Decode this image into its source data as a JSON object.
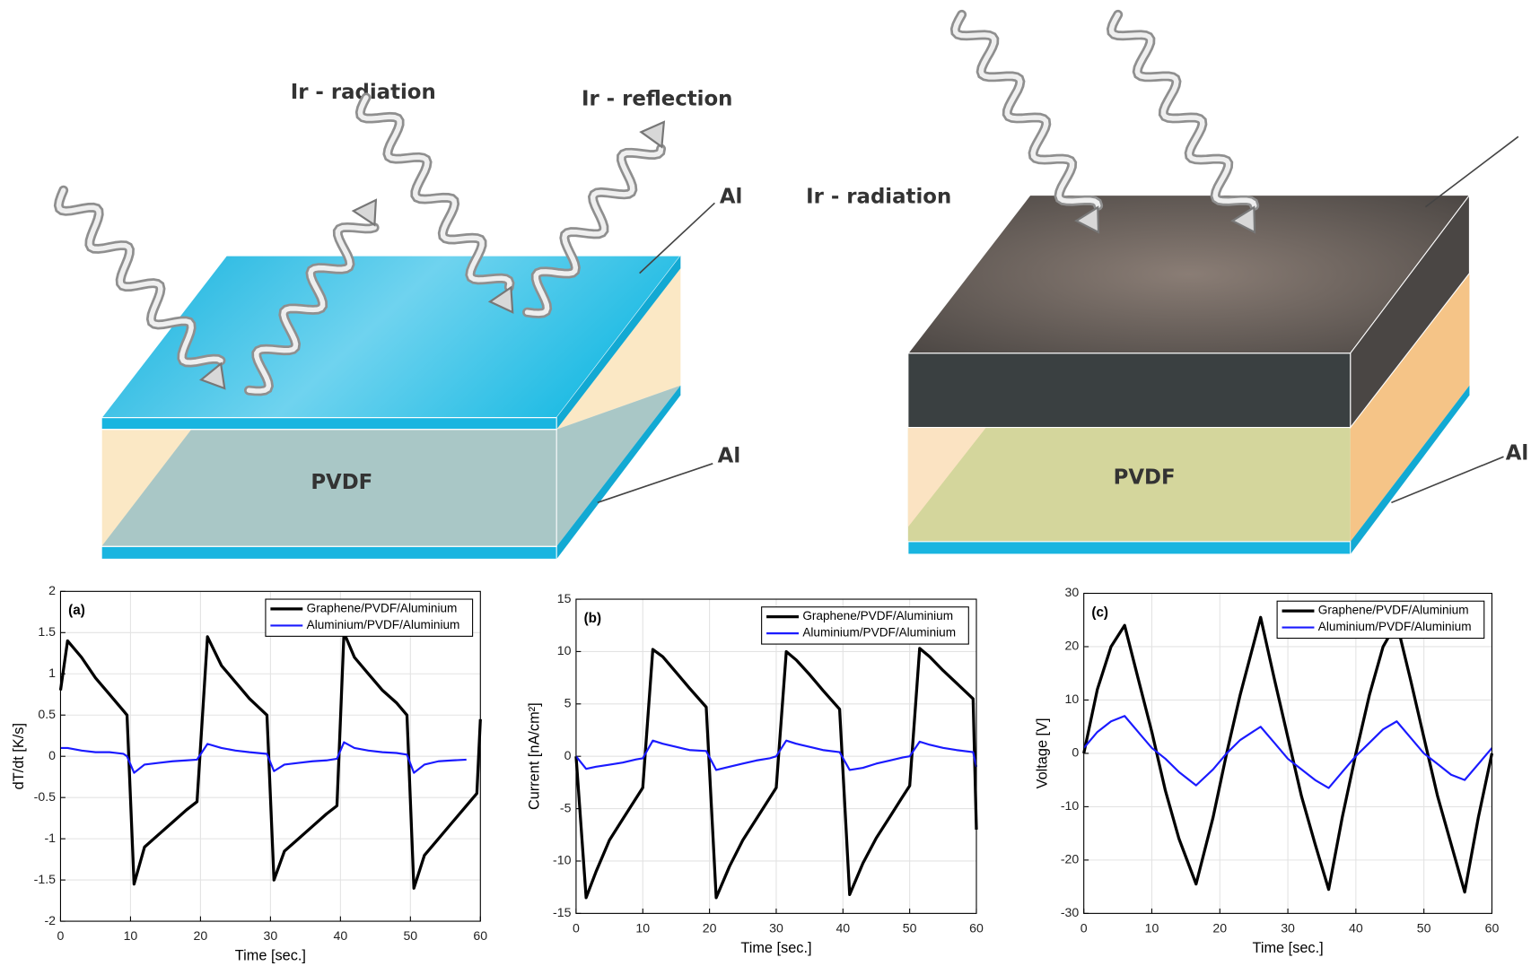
{
  "diagram_left": {
    "radiation": "Ir - radiation",
    "reflection": "Ir - reflection",
    "al_top": "Al",
    "al_bottom": "Al",
    "layer": "PVDF"
  },
  "diagram_right": {
    "radiation": "Ir - radiation",
    "al_bottom": "Al",
    "layer": "PVDF"
  },
  "chart_data": [
    {
      "type": "line",
      "panel_label": "(a)",
      "xlabel": "Time [sec.]",
      "ylabel": "dT/dt [K/s]",
      "x": [
        0,
        1,
        3,
        5,
        7,
        9,
        9.5,
        10.5,
        12,
        14,
        16,
        18,
        19.5,
        21,
        23,
        25,
        27,
        29.5,
        30.5,
        32,
        34,
        36,
        38,
        39.5,
        40.5,
        42,
        44,
        46,
        48,
        49.5,
        50.5,
        52,
        54,
        56,
        58,
        59.5,
        60
      ],
      "series": [
        {
          "name": "Graphene/PVDF/Aluminium",
          "color": "#000000",
          "values": [
            0.8,
            1.4,
            1.2,
            0.95,
            0.75,
            0.55,
            0.5,
            -1.55,
            -1.1,
            -0.95,
            -0.8,
            -0.65,
            -0.55,
            1.45,
            1.1,
            0.9,
            0.7,
            0.5,
            -1.5,
            -1.15,
            -1.0,
            -0.85,
            -0.7,
            -0.6,
            1.5,
            1.2,
            1.0,
            0.8,
            0.65,
            0.5,
            -1.6,
            -1.2,
            -1.0,
            -0.8,
            -0.6,
            -0.45,
            0.45
          ]
        },
        {
          "name": "Aluminium/PVDF/Aluminium",
          "color": "#1a1aff",
          "values": [
            0.1,
            0.1,
            0.07,
            0.05,
            0.05,
            0.03,
            0.0,
            -0.2,
            -0.1,
            -0.08,
            -0.06,
            -0.05,
            -0.04,
            0.15,
            0.1,
            0.07,
            0.05,
            0.03,
            -0.18,
            -0.1,
            -0.08,
            -0.06,
            -0.05,
            -0.03,
            0.17,
            0.1,
            0.07,
            0.05,
            0.04,
            0.02,
            -0.2,
            -0.1,
            -0.06,
            -0.05,
            -0.04,
            null,
            null
          ]
        }
      ],
      "xlim": [
        0,
        60
      ],
      "ylim": [
        -2,
        2
      ],
      "xticks": [
        0,
        10,
        20,
        30,
        40,
        50,
        60
      ],
      "yticks": [
        -2,
        -1.5,
        -1,
        -0.5,
        0,
        0.5,
        1,
        1.5,
        2
      ],
      "grid": true,
      "legend": "upper right"
    },
    {
      "type": "line",
      "panel_label": "(b)",
      "xlabel": "Time [sec.]",
      "ylabel": "Current [nA/cm²]",
      "x": [
        0,
        1.5,
        3,
        5,
        7,
        9,
        10,
        11.5,
        13,
        15,
        17,
        19.5,
        21,
        23,
        25,
        27,
        29,
        30,
        31.5,
        33,
        35,
        37,
        39.5,
        41,
        43,
        45,
        47,
        49,
        50,
        51.5,
        53,
        55,
        57,
        59.5,
        60
      ],
      "series": [
        {
          "name": "Graphene/PVDF/Aluminium",
          "color": "#000000",
          "values": [
            0,
            -13.5,
            -11,
            -8,
            -6,
            -4,
            -3,
            10.2,
            9.5,
            8,
            6.5,
            4.7,
            -13.5,
            -10.5,
            -8,
            -6,
            -4,
            -3,
            10,
            9.2,
            7.8,
            6.3,
            4.5,
            -13.2,
            -10.2,
            -7.8,
            -5.8,
            -3.8,
            -2.8,
            10.3,
            9.5,
            8.2,
            7,
            5.5,
            -7
          ]
        },
        {
          "name": "Aluminium/PVDF/Aluminium",
          "color": "#1a1aff",
          "values": [
            0,
            -1.2,
            -1,
            -0.8,
            -0.6,
            -0.3,
            -0.2,
            1.5,
            1.2,
            0.9,
            0.6,
            0.5,
            -1.3,
            -1,
            -0.7,
            -0.4,
            -0.2,
            0,
            1.5,
            1.2,
            0.9,
            0.6,
            0.4,
            -1.3,
            -1.1,
            -0.7,
            -0.4,
            -0.1,
            0,
            1.4,
            1.1,
            0.8,
            0.6,
            0.4,
            -1
          ]
        }
      ],
      "xlim": [
        0,
        60
      ],
      "ylim": [
        -15,
        15
      ],
      "xticks": [
        0,
        10,
        20,
        30,
        40,
        50,
        60
      ],
      "yticks": [
        -15,
        -10,
        -5,
        0,
        5,
        10,
        15
      ],
      "grid": true,
      "legend": "upper right"
    },
    {
      "type": "line",
      "panel_label": "(c)",
      "xlabel": "Time [sec.]",
      "ylabel": "Voltage [V]",
      "x": [
        0,
        2,
        4,
        6,
        8,
        10,
        12,
        14,
        16.5,
        19,
        21,
        23,
        26,
        28,
        30,
        32,
        34,
        36,
        38,
        40,
        42,
        44,
        46,
        48,
        50,
        52,
        54,
        56,
        58,
        60
      ],
      "series": [
        {
          "name": "Graphene/PVDF/Aluminium",
          "color": "#000000",
          "values": [
            0,
            12,
            20,
            24,
            14,
            4,
            -7,
            -16,
            -24.5,
            -12,
            0,
            11,
            25.5,
            14,
            3,
            -8,
            -17,
            -25.5,
            -12,
            0,
            11,
            20,
            24.5,
            14,
            3,
            -8,
            -17,
            -26,
            -12,
            0
          ]
        },
        {
          "name": "Aluminium/PVDF/Aluminium",
          "color": "#1a1aff",
          "values": [
            1,
            4,
            6,
            7,
            4,
            1,
            -1,
            -3.5,
            -6,
            -3,
            0,
            2.5,
            5,
            2,
            -1,
            -3,
            -5,
            -6.5,
            -3.5,
            -0.5,
            2,
            4.5,
            6,
            3,
            0,
            -2,
            -4,
            -5,
            -2,
            1
          ]
        }
      ],
      "xlim": [
        0,
        60
      ],
      "ylim": [
        -30,
        30
      ],
      "xticks": [
        0,
        10,
        20,
        30,
        40,
        50,
        60
      ],
      "yticks": [
        -30,
        -20,
        -10,
        0,
        10,
        20,
        30
      ],
      "grid": true,
      "legend": "upper right"
    }
  ]
}
